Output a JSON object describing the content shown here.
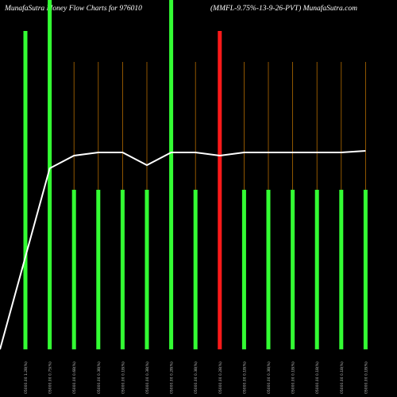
{
  "header": {
    "title_left": "MunafaSutra  Money Flow  Charts for 976010",
    "title_right": "(MMFL-9.75%-13-9-26-PVT) MunafaSutra.com"
  },
  "colors": {
    "background": "#000000",
    "up": "#33ff33",
    "down": "#ff1a1a",
    "line": "#ffffff",
    "grid": "#b36b00"
  },
  "chart_data": {
    "type": "bar",
    "title": "MunafaSutra  Money Flow  Charts for 976010",
    "subtitle": "(MMFL-9.75%-13-9-26-PVT) MunafaSutra.com",
    "categories": [
      "05000.00 1.28(%)",
      "05000.00 0.75(%)",
      "05000.00 0.68(%)",
      "05000.00 0.38(%)",
      "05000.00 0.18(%)",
      "05000.00 0.38(%)",
      "05000.00 0.28(%)",
      "05000.00 0.38(%)",
      "05000.00 0.28(%)",
      "05000.00 0.18(%)",
      "05000.00 0.38(%)",
      "05000.00 0.18(%)",
      "05000.00 0.18(%)",
      "05000.00 0.18(%)",
      "05000.00 0.18(%)"
    ],
    "bar_values": [
      100,
      100,
      50,
      50,
      50,
      50,
      100,
      50,
      100,
      50,
      50,
      50,
      50,
      50,
      50
    ],
    "bar_colors": [
      "up",
      "up",
      "up",
      "up",
      "up",
      "up",
      "up",
      "up",
      "down",
      "up",
      "up",
      "up",
      "up",
      "up",
      "up"
    ],
    "line_values": [
      0,
      57,
      61,
      62,
      62,
      58,
      62,
      62,
      61,
      62,
      62,
      62,
      62,
      62,
      62.5
    ],
    "ylim": [
      0,
      100
    ],
    "grid": true
  }
}
